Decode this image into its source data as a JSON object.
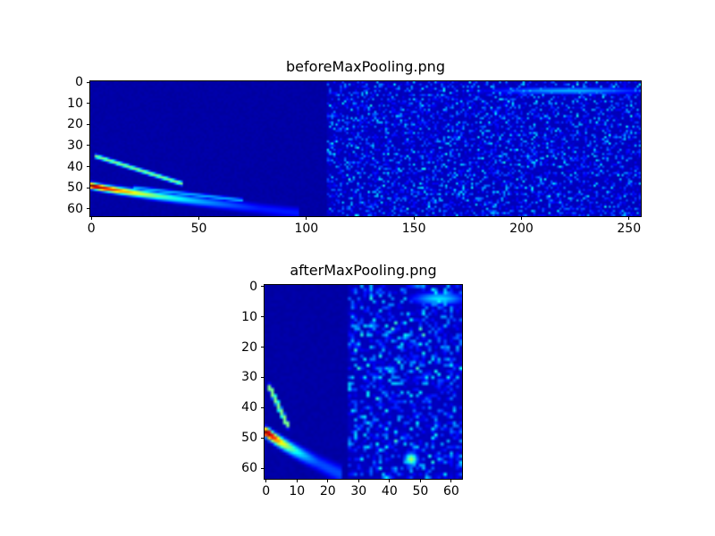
{
  "figure": {
    "background": "#ffffff",
    "frame_color": "#000000",
    "text_color": "#000000"
  },
  "chart_data": [
    {
      "type": "heatmap",
      "title": "beforeMaxPooling.png",
      "colormap": "jet",
      "grid": {
        "cols": 256,
        "rows": 64
      },
      "xticks": [
        0,
        50,
        100,
        150,
        200,
        250
      ],
      "yticks": [
        0,
        10,
        20,
        30,
        40,
        50,
        60
      ],
      "xlim": [
        0,
        255
      ],
      "ylim": [
        63,
        0
      ],
      "grid_lines": false,
      "background_value": 0.03,
      "noise_region": {
        "x_start": 110,
        "density": 0.5,
        "max_value": 0.35,
        "lift": 0.02
      },
      "features": [
        {
          "kind": "arc",
          "x0": 0,
          "x1": 96,
          "y0": 49,
          "dy": 13,
          "exp": 0.85,
          "peak": 1.05,
          "decay": 40,
          "min": 0.15,
          "sigma": 1.0
        },
        {
          "kind": "line",
          "x0": 2,
          "y0": 35,
          "x1": 42,
          "y1": 48,
          "value": 0.5,
          "sigma": 0.7
        },
        {
          "kind": "line",
          "x0": 20,
          "y0": 50,
          "x1": 70,
          "y1": 56,
          "value": 0.3,
          "sigma": 0.7
        },
        {
          "kind": "blob",
          "x": 222,
          "y": 4,
          "rx": 26,
          "ry": 1.2,
          "value": 0.3
        }
      ],
      "seed": 20240101
    },
    {
      "type": "heatmap",
      "title": "afterMaxPooling.png",
      "colormap": "jet",
      "grid": {
        "cols": 64,
        "rows": 64
      },
      "xticks": [
        0,
        10,
        20,
        30,
        40,
        50,
        60
      ],
      "yticks": [
        0,
        10,
        20,
        30,
        40,
        50,
        60
      ],
      "xlim": [
        0,
        63
      ],
      "ylim": [
        63,
        0
      ],
      "grid_lines": false,
      "background_value": 0.03,
      "noise_region": {
        "x_start": 27,
        "density": 0.55,
        "max_value": 0.4,
        "lift": 0.02
      },
      "features": [
        {
          "kind": "arc",
          "x0": 0,
          "x1": 24,
          "y0": 48,
          "dy": 14,
          "exp": 0.85,
          "peak": 1.05,
          "decay": 10,
          "min": 0.2,
          "sigma": 1.0
        },
        {
          "kind": "line",
          "x0": 1,
          "y0": 33,
          "x1": 7,
          "y1": 46,
          "value": 0.5,
          "sigma": 0.6
        },
        {
          "kind": "blob",
          "x": 56,
          "y": 4,
          "rx": 6,
          "ry": 1.5,
          "value": 0.35
        },
        {
          "kind": "blob",
          "x": 47,
          "y": 57,
          "rx": 1.5,
          "ry": 1.5,
          "value": 0.55
        }
      ],
      "seed": 777
    }
  ]
}
